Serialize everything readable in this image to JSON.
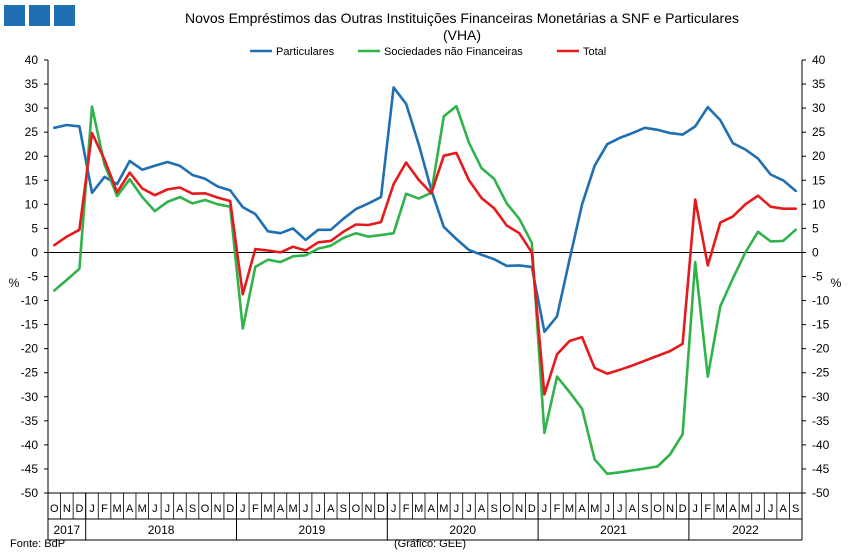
{
  "chart_data": {
    "type": "line",
    "title": "Novos Empréstimos das Outras Instituições Financeiras Monetárias a SNF e Particulares",
    "subtitle": "(VHA)",
    "ylabel_left": "%",
    "ylabel_right": "%",
    "ylim": [
      -50,
      40
    ],
    "y_ticks": [
      40,
      35,
      30,
      25,
      20,
      15,
      10,
      5,
      0,
      -5,
      -10,
      -15,
      -20,
      -25,
      -30,
      -35,
      -40,
      -45,
      -50
    ],
    "grid": false,
    "legend_position": "top",
    "x": [
      "2017-10",
      "2017-11",
      "2017-12",
      "2018-01",
      "2018-02",
      "2018-03",
      "2018-04",
      "2018-05",
      "2018-06",
      "2018-07",
      "2018-08",
      "2018-09",
      "2018-10",
      "2018-11",
      "2018-12",
      "2019-01",
      "2019-02",
      "2019-03",
      "2019-04",
      "2019-05",
      "2019-06",
      "2019-07",
      "2019-08",
      "2019-09",
      "2019-10",
      "2019-11",
      "2019-12",
      "2020-01",
      "2020-02",
      "2020-03",
      "2020-04",
      "2020-05",
      "2020-06",
      "2020-07",
      "2020-08",
      "2020-09",
      "2020-10",
      "2020-11",
      "2020-12",
      "2021-01",
      "2021-02",
      "2021-03",
      "2021-04",
      "2021-05",
      "2021-06",
      "2021-07",
      "2021-08",
      "2021-09",
      "2021-10",
      "2021-11",
      "2021-12",
      "2022-01",
      "2022-02",
      "2022-03",
      "2022-04",
      "2022-05",
      "2022-06",
      "2022-07",
      "2022-08",
      "2022-09"
    ],
    "month_labels": [
      "O",
      "N",
      "D",
      "J",
      "F",
      "M",
      "A",
      "M",
      "J",
      "J",
      "A",
      "S",
      "O",
      "N",
      "D",
      "J",
      "F",
      "M",
      "A",
      "M",
      "J",
      "J",
      "A",
      "S",
      "O",
      "N",
      "D",
      "J",
      "F",
      "M",
      "A",
      "M",
      "J",
      "J",
      "A",
      "S",
      "O",
      "N",
      "D",
      "J",
      "F",
      "M",
      "A",
      "M",
      "J",
      "J",
      "A",
      "S",
      "O",
      "N",
      "D",
      "J",
      "F",
      "M",
      "A",
      "M",
      "J",
      "J",
      "A",
      "S"
    ],
    "year_groups": [
      {
        "label": "2017",
        "start": 0,
        "end": 2
      },
      {
        "label": "2018",
        "start": 3,
        "end": 14
      },
      {
        "label": "2019",
        "start": 15,
        "end": 26
      },
      {
        "label": "2020",
        "start": 27,
        "end": 38
      },
      {
        "label": "2021",
        "start": 39,
        "end": 50
      },
      {
        "label": "2022",
        "start": 51,
        "end": 59
      }
    ],
    "series": [
      {
        "name": "Particulares",
        "color": "#1f6fb2",
        "values": [
          25.9,
          26.5,
          26.2,
          12.4,
          15.7,
          14.2,
          19.0,
          17.2,
          18.0,
          18.8,
          18.0,
          16.1,
          15.3,
          13.7,
          12.9,
          9.4,
          8.0,
          4.4,
          4.0,
          5.0,
          2.6,
          4.7,
          4.7,
          7.0,
          9.0,
          10.2,
          11.5,
          34.3,
          30.9,
          22.5,
          13.0,
          5.3,
          2.8,
          0.5,
          -0.5,
          -1.4,
          -2.8,
          -2.7,
          -3.0,
          -16.5,
          -13.3,
          -1.5,
          10.0,
          18.0,
          22.5,
          23.8,
          24.8,
          25.9,
          25.5,
          24.8,
          24.5,
          26.2,
          30.2,
          27.5,
          22.7,
          21.4,
          19.5,
          16.2,
          15.0,
          12.8
        ]
      },
      {
        "name": "Sociedades não Financeiras",
        "color": "#2fb34a",
        "values": [
          -7.9,
          -5.7,
          -3.4,
          30.3,
          18.3,
          11.7,
          15.2,
          11.5,
          8.6,
          10.5,
          11.5,
          10.2,
          10.9,
          10.0,
          9.5,
          -15.8,
          -3.0,
          -1.5,
          -2.0,
          -0.8,
          -0.6,
          0.8,
          1.4,
          3.0,
          4.0,
          3.3,
          3.6,
          4.0,
          12.2,
          11.2,
          12.4,
          28.3,
          30.4,
          22.8,
          17.5,
          15.3,
          10.2,
          7.0,
          2.0,
          -37.5,
          -25.8,
          -29.0,
          -32.5,
          -43.0,
          -46.0,
          -45.7,
          -45.3,
          -44.9,
          -44.5,
          -42.0,
          -37.8,
          -2.0,
          -25.8,
          -11.2,
          -5.4,
          0.0,
          4.3,
          2.3,
          2.4,
          4.7
        ]
      },
      {
        "name": "Total",
        "color": "#e41a1c",
        "values": [
          1.5,
          3.3,
          4.7,
          24.8,
          19.3,
          12.5,
          16.6,
          13.3,
          11.9,
          13.1,
          13.5,
          12.2,
          12.3,
          11.4,
          10.7,
          -8.7,
          0.7,
          0.4,
          0.0,
          1.2,
          0.4,
          2.1,
          2.4,
          4.3,
          5.8,
          5.7,
          6.3,
          14.2,
          18.7,
          15.1,
          12.3,
          20.1,
          20.7,
          15.0,
          11.3,
          9.2,
          5.6,
          4.0,
          0.0,
          -29.5,
          -21.2,
          -18.4,
          -17.6,
          -24.0,
          -25.2,
          -24.4,
          -23.5,
          -22.5,
          -21.5,
          -20.5,
          -19.0,
          11.0,
          -2.7,
          6.2,
          7.5,
          10.0,
          11.8,
          9.5,
          9.1,
          9.1
        ]
      }
    ]
  },
  "header_decoration": {
    "color": "#1f6fb2",
    "count": 3
  },
  "footer": {
    "source": "Fonte: BdP",
    "credit": "(Gráfico: GEE)"
  }
}
